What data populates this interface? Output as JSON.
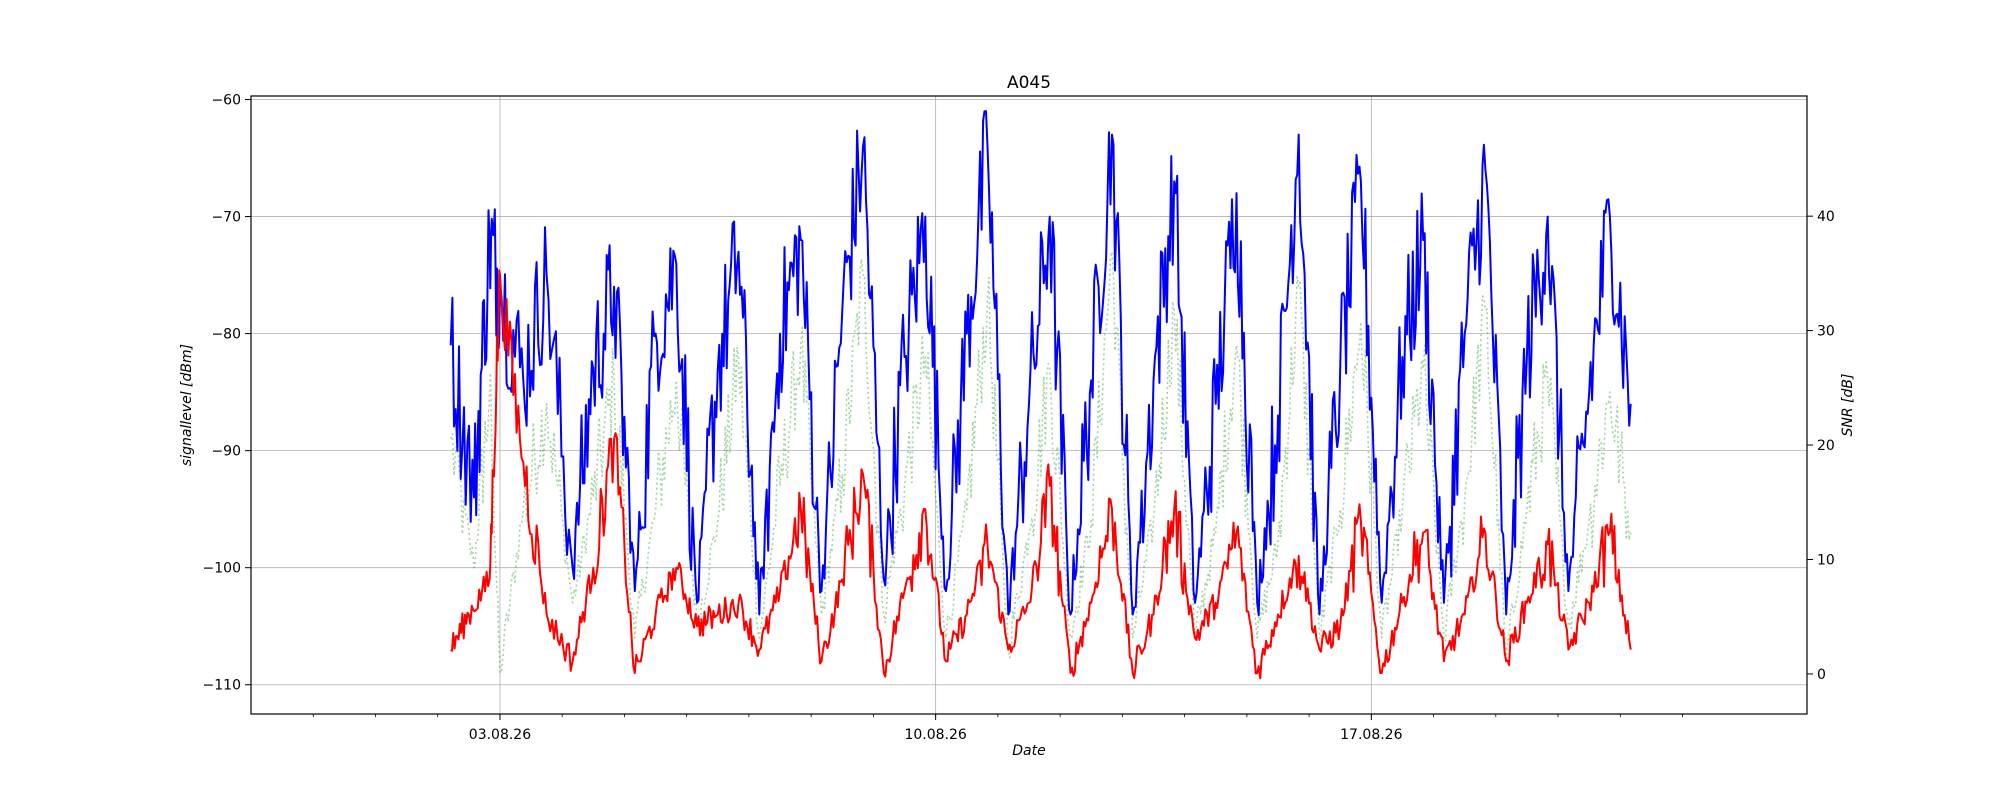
{
  "chart_data": {
    "type": "line",
    "title": "A045",
    "xlabel": "Date",
    "ylabel": "signallevel [dBm]",
    "ylabel_right": "SNR [dB]",
    "x_range": [
      "2026-07-30",
      "2026-08-24"
    ],
    "ylim": [
      -112.5,
      -59.7
    ],
    "ylim_right": [
      -3.5,
      50.5
    ],
    "x_tick_labels": [
      "03.08.26",
      "10.08.26",
      "17.08.26"
    ],
    "x_tick_dates": [
      "2026-08-03",
      "2026-08-10",
      "2026-08-17"
    ],
    "y_ticks": [
      -110,
      -100,
      -90,
      -80,
      -70,
      -60
    ],
    "y_ticks_right": [
      0,
      10,
      20,
      30,
      40
    ],
    "grid": true,
    "series": [
      {
        "axis": "left",
        "color": "#0000ff",
        "style": "solid",
        "x": [
          "2026-08-02 05:00",
          "2026-08-02 14:00",
          "2026-08-02 20:00",
          "2026-08-03 00:00",
          "2026-08-03 09:00",
          "2026-08-03 18:00",
          "2026-08-04 04:00",
          "2026-08-04 12:00",
          "2026-08-04 20:00",
          "2026-08-05 04:00",
          "2026-08-05 12:00",
          "2026-08-05 20:00",
          "2026-08-06 04:00",
          "2026-08-06 12:00",
          "2026-08-06 20:00",
          "2026-08-07 04:00",
          "2026-08-07 12:00",
          "2026-08-07 20:00",
          "2026-08-08 04:00",
          "2026-08-08 12:00",
          "2026-08-08 20:00",
          "2026-08-09 04:00",
          "2026-08-09 12:00",
          "2026-08-09 20:00",
          "2026-08-10 04:00",
          "2026-08-10 12:00",
          "2026-08-10 20:00",
          "2026-08-11 04:00",
          "2026-08-11 12:00",
          "2026-08-11 20:00",
          "2026-08-12 04:00",
          "2026-08-12 12:00",
          "2026-08-12 20:00",
          "2026-08-13 04:00",
          "2026-08-13 12:00",
          "2026-08-13 20:00",
          "2026-08-14 04:00",
          "2026-08-14 12:00",
          "2026-08-14 20:00",
          "2026-08-15 04:00",
          "2026-08-15 12:00",
          "2026-08-15 20:00",
          "2026-08-16 04:00",
          "2026-08-16 12:00",
          "2026-08-16 20:00",
          "2026-08-17 04:00",
          "2026-08-17 12:00",
          "2026-08-17 20:00",
          "2026-08-18 04:00",
          "2026-08-18 12:00",
          "2026-08-18 20:00",
          "2026-08-19 04:00",
          "2026-08-19 12:00",
          "2026-08-19 20:00",
          "2026-08-20 04:00",
          "2026-08-20 12:00",
          "2026-08-20 20:00",
          "2026-08-21 04:00"
        ],
        "y": [
          -81,
          -94,
          -72,
          -76,
          -84,
          -75,
          -100,
          -83,
          -76,
          -102,
          -80,
          -74,
          -103,
          -83,
          -73,
          -104,
          -80,
          -72,
          -102,
          -78,
          -64,
          -101,
          -82,
          -70,
          -102,
          -80,
          -64,
          -104,
          -86,
          -70,
          -104,
          -84,
          -63,
          -104,
          -84,
          -67,
          -103,
          -86,
          -68,
          -103,
          -87,
          -63,
          -104,
          -83,
          -67,
          -103,
          -82,
          -72,
          -103,
          -80,
          -66,
          -104,
          -82,
          -70,
          -102,
          -85,
          -70,
          -86
        ]
      },
      {
        "axis": "left",
        "color": "#ff0000",
        "style": "solid",
        "x": [
          "2026-08-02 05:00",
          "2026-08-02 12:00",
          "2026-08-02 20:00",
          "2026-08-03 00:00",
          "2026-08-03 09:00",
          "2026-08-03 18:00",
          "2026-08-04 04:00",
          "2026-08-04 12:00",
          "2026-08-04 20:00",
          "2026-08-05 04:00",
          "2026-08-05 12:00",
          "2026-08-05 20:00",
          "2026-08-06 04:00",
          "2026-08-06 12:00",
          "2026-08-06 20:00",
          "2026-08-07 04:00",
          "2026-08-07 12:00",
          "2026-08-07 20:00",
          "2026-08-08 04:00",
          "2026-08-08 12:00",
          "2026-08-08 20:00",
          "2026-08-09 04:00",
          "2026-08-09 12:00",
          "2026-08-09 20:00",
          "2026-08-10 04:00",
          "2026-08-10 12:00",
          "2026-08-10 20:00",
          "2026-08-11 04:00",
          "2026-08-11 12:00",
          "2026-08-11 20:00",
          "2026-08-12 04:00",
          "2026-08-12 12:00",
          "2026-08-12 20:00",
          "2026-08-13 04:00",
          "2026-08-13 12:00",
          "2026-08-13 20:00",
          "2026-08-14 04:00",
          "2026-08-14 12:00",
          "2026-08-14 20:00",
          "2026-08-15 04:00",
          "2026-08-15 12:00",
          "2026-08-15 20:00",
          "2026-08-16 04:00",
          "2026-08-16 12:00",
          "2026-08-16 20:00",
          "2026-08-17 04:00",
          "2026-08-17 12:00",
          "2026-08-17 20:00",
          "2026-08-18 04:00",
          "2026-08-18 12:00",
          "2026-08-18 20:00",
          "2026-08-19 04:00",
          "2026-08-19 12:00",
          "2026-08-19 20:00",
          "2026-08-20 04:00",
          "2026-08-20 12:00",
          "2026-08-20 20:00",
          "2026-08-21 04:00"
        ],
        "y": [
          -107,
          -104,
          -101,
          -75,
          -91,
          -104,
          -108,
          -100,
          -89,
          -109,
          -104,
          -100,
          -105,
          -104,
          -103,
          -107,
          -102,
          -95,
          -108,
          -101,
          -92,
          -109,
          -102,
          -95,
          -108,
          -104,
          -98,
          -107,
          -103,
          -93,
          -109,
          -103,
          -95,
          -109,
          -104,
          -95,
          -106,
          -103,
          -97,
          -109,
          -104,
          -99,
          -107,
          -105,
          -96,
          -109,
          -103,
          -97,
          -108,
          -104,
          -97,
          -108,
          -103,
          -98,
          -107,
          -103,
          -97,
          -107
        ]
      },
      {
        "axis": "left",
        "color": "#2ca02c",
        "style": "dotted",
        "x": [
          "2026-08-02 05:00",
          "2026-08-02 14:00",
          "2026-08-02 20:00",
          "2026-08-03 00:00",
          "2026-08-03 09:00",
          "2026-08-03 18:00",
          "2026-08-04 04:00",
          "2026-08-04 12:00",
          "2026-08-04 20:00",
          "2026-08-05 04:00",
          "2026-08-05 12:00",
          "2026-08-05 20:00",
          "2026-08-06 04:00",
          "2026-08-06 12:00",
          "2026-08-06 20:00",
          "2026-08-07 04:00",
          "2026-08-07 12:00",
          "2026-08-07 20:00",
          "2026-08-08 04:00",
          "2026-08-08 12:00",
          "2026-08-08 20:00",
          "2026-08-09 04:00",
          "2026-08-09 12:00",
          "2026-08-09 20:00",
          "2026-08-10 04:00",
          "2026-08-10 12:00",
          "2026-08-10 20:00",
          "2026-08-11 04:00",
          "2026-08-11 12:00",
          "2026-08-11 20:00",
          "2026-08-12 04:00",
          "2026-08-12 12:00",
          "2026-08-12 20:00",
          "2026-08-13 04:00",
          "2026-08-13 12:00",
          "2026-08-13 20:00",
          "2026-08-14 04:00",
          "2026-08-14 12:00",
          "2026-08-14 20:00",
          "2026-08-15 04:00",
          "2026-08-15 12:00",
          "2026-08-15 20:00",
          "2026-08-16 04:00",
          "2026-08-16 12:00",
          "2026-08-16 20:00",
          "2026-08-17 04:00",
          "2026-08-17 12:00",
          "2026-08-17 20:00",
          "2026-08-18 04:00",
          "2026-08-18 12:00",
          "2026-08-18 20:00",
          "2026-08-19 04:00",
          "2026-08-19 12:00",
          "2026-08-19 20:00",
          "2026-08-20 04:00",
          "2026-08-20 12:00",
          "2026-08-20 20:00",
          "2026-08-21 04:00"
        ],
        "y": [
          -89,
          -100,
          -85,
          -109,
          -95,
          -86,
          -103,
          -94,
          -84,
          -106,
          -95,
          -84,
          -105,
          -96,
          -82,
          -106,
          -93,
          -81,
          -104,
          -92,
          -75,
          -104,
          -93,
          -82,
          -106,
          -95,
          -77,
          -107,
          -97,
          -83,
          -106,
          -96,
          -73,
          -106,
          -96,
          -78,
          -106,
          -97,
          -81,
          -106,
          -98,
          -76,
          -106,
          -95,
          -79,
          -106,
          -95,
          -83,
          -106,
          -94,
          -78,
          -108,
          -95,
          -84,
          -105,
          -96,
          -85,
          -97
        ]
      }
    ]
  }
}
